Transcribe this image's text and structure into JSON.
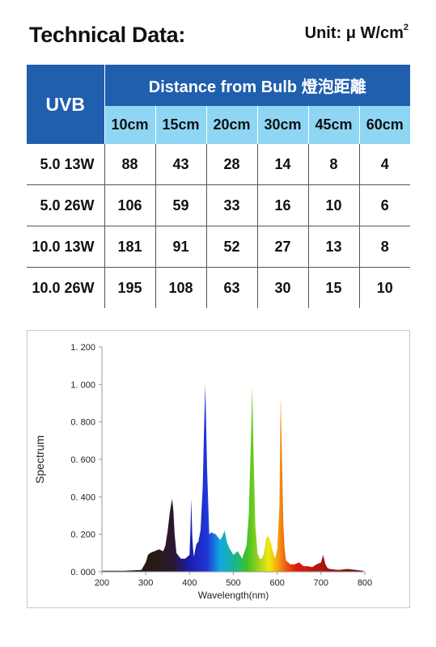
{
  "header": {
    "title": "Technical Data:",
    "unit": "Unit: μ W/cm",
    "unit_sup": "2"
  },
  "table": {
    "uvb_header": "UVB",
    "distance_header": "Distance from Bulb 燈泡距離",
    "columns": [
      "10cm",
      "15cm",
      "20cm",
      "30cm",
      "45cm",
      "60cm"
    ],
    "rows": [
      {
        "label": "5.0  13W",
        "values": [
          "88",
          "43",
          "28",
          "14",
          "8",
          "4"
        ]
      },
      {
        "label": "5.0  26W",
        "values": [
          "106",
          "59",
          "33",
          "16",
          "10",
          "6"
        ]
      },
      {
        "label": "10.0  13W",
        "values": [
          "181",
          "91",
          "52",
          "27",
          "13",
          "8"
        ]
      },
      {
        "label": "10.0  26W",
        "values": [
          "195",
          "108",
          "63",
          "30",
          "15",
          "10"
        ]
      }
    ]
  },
  "chart_data": {
    "type": "area",
    "xlabel": "Wavelength(nm)",
    "ylabel": "Spectrum",
    "xlim": [
      200,
      800
    ],
    "ylim": [
      0,
      1.2
    ],
    "xticks": [
      "200",
      "300",
      "400",
      "500",
      "600",
      "700",
      "800"
    ],
    "yticks": [
      "0. 000",
      "0. 200",
      "0. 400",
      "0. 600",
      "0. 800",
      "1. 000",
      "1. 200"
    ],
    "grid": false,
    "x": [
      200,
      250,
      290,
      300,
      305,
      310,
      320,
      330,
      340,
      345,
      350,
      355,
      360,
      363,
      366,
      370,
      380,
      390,
      400,
      402,
      404,
      406,
      408,
      410,
      413,
      416,
      420,
      425,
      430,
      433,
      436,
      440,
      445,
      450,
      460,
      470,
      475,
      480,
      485,
      490,
      500,
      510,
      520,
      530,
      535,
      540,
      543,
      546,
      550,
      555,
      560,
      565,
      570,
      575,
      580,
      585,
      590,
      595,
      600,
      605,
      608,
      611,
      614,
      617,
      620,
      625,
      630,
      640,
      650,
      660,
      670,
      680,
      690,
      700,
      705,
      710,
      715,
      720,
      740,
      760,
      780,
      795,
      800
    ],
    "y": [
      0.005,
      0.005,
      0.01,
      0.05,
      0.09,
      0.1,
      0.11,
      0.12,
      0.11,
      0.14,
      0.22,
      0.32,
      0.39,
      0.33,
      0.2,
      0.1,
      0.07,
      0.07,
      0.09,
      0.22,
      0.39,
      0.2,
      0.12,
      0.08,
      0.12,
      0.15,
      0.16,
      0.22,
      0.45,
      0.75,
      1.0,
      0.55,
      0.2,
      0.21,
      0.2,
      0.17,
      0.19,
      0.22,
      0.16,
      0.13,
      0.09,
      0.11,
      0.07,
      0.14,
      0.3,
      0.7,
      0.99,
      0.65,
      0.25,
      0.1,
      0.07,
      0.07,
      0.1,
      0.18,
      0.19,
      0.16,
      0.11,
      0.07,
      0.12,
      0.35,
      0.94,
      0.6,
      0.25,
      0.12,
      0.06,
      0.05,
      0.04,
      0.04,
      0.05,
      0.03,
      0.03,
      0.025,
      0.04,
      0.05,
      0.09,
      0.04,
      0.02,
      0.015,
      0.01,
      0.015,
      0.01,
      0.005,
      0.0
    ]
  },
  "colors": {
    "header_blue": "#1f5fae",
    "subheader_cyan": "#8fd6f4"
  }
}
